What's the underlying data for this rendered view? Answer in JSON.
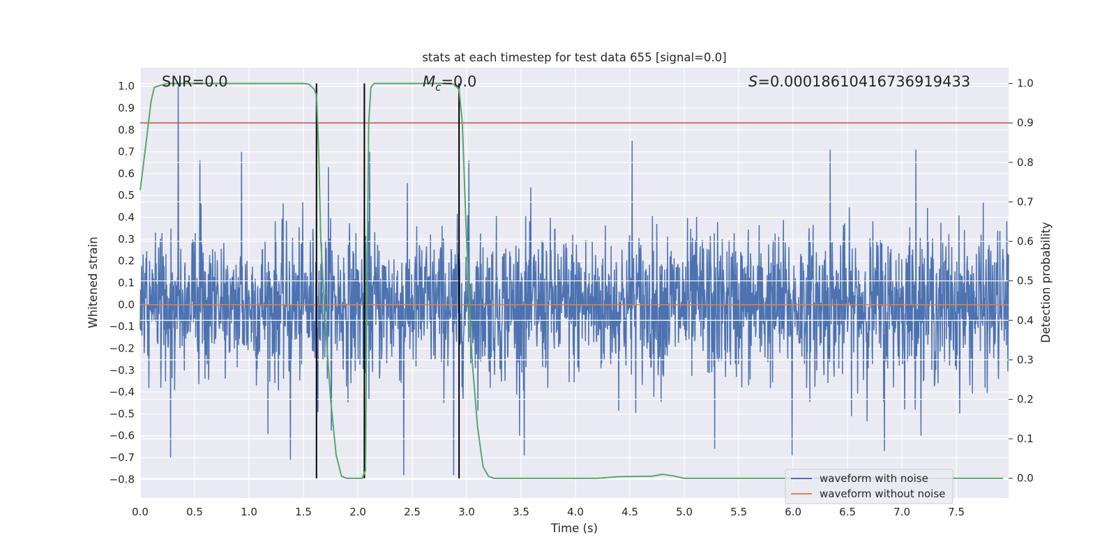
{
  "chart_data": {
    "type": "line",
    "title": "stats at each timestep for test data 655 [signal=0.0]",
    "xlabel": "Time (s)",
    "ylabel_left": "Whitened strain",
    "ylabel_right": "Detection probability",
    "xlim": [
      0.0,
      7.98
    ],
    "ylim_left": [
      -0.885,
      1.085
    ],
    "ylim_right": [
      -0.05,
      1.04
    ],
    "x_ticks": [
      "0.0",
      "0.5",
      "1.0",
      "1.5",
      "2.0",
      "2.5",
      "3.0",
      "3.5",
      "4.0",
      "4.5",
      "5.0",
      "5.5",
      "6.0",
      "6.5",
      "7.0",
      "7.5"
    ],
    "y_ticks_left": [
      "1.0",
      "0.9",
      "0.8",
      "0.7",
      "0.6",
      "0.5",
      "0.4",
      "0.3",
      "0.2",
      "0.1",
      "0.0",
      "−0.1",
      "−0.2",
      "−0.3",
      "−0.4",
      "−0.5",
      "−0.6",
      "−0.7",
      "−0.8"
    ],
    "y_ticks_right": [
      "1.0",
      "0.9",
      "0.8",
      "0.7",
      "0.6",
      "0.5",
      "0.4",
      "0.3",
      "0.2",
      "0.1",
      "0.0"
    ],
    "grid": true,
    "legend_position": "lower-right",
    "annotations": {
      "snr": "SNR=0.0",
      "mc_symbol": "M",
      "mc_subscript": "c",
      "mc_value": "=0.0",
      "s_symbol": "S",
      "s_value": "=0.00018610416736919433"
    },
    "series": [
      {
        "name": "waveform with noise",
        "color": "#4c72b0",
        "description_peaks": {
          "typical_range": [
            -0.45,
            0.45
          ],
          "max_spike": {
            "x": 0.35,
            "y": 1.0
          },
          "notable_highs": [
            [
              0.55,
              0.66
            ],
            [
              0.93,
              0.7
            ],
            [
              1.73,
              0.63
            ],
            [
              2.11,
              0.7
            ],
            [
              3.02,
              0.66
            ],
            [
              4.52,
              0.75
            ],
            [
              6.34,
              0.71
            ],
            [
              7.13,
              0.71
            ]
          ],
          "notable_lows": [
            [
              0.28,
              -0.7
            ],
            [
              1.38,
              -0.71
            ],
            [
              2.42,
              -0.78
            ],
            [
              2.88,
              -0.78
            ],
            [
              3.53,
              -0.69
            ],
            [
              5.28,
              -0.66
            ],
            [
              5.99,
              -0.69
            ],
            [
              6.84,
              -0.67
            ]
          ]
        }
      },
      {
        "name": "waveform without noise",
        "color": "#dd8452",
        "x": [
          0.0,
          7.98
        ],
        "y": [
          0.0,
          0.0
        ]
      },
      {
        "name": "detection probability",
        "axis": "right",
        "color": "#55a868",
        "x": [
          0.0,
          0.05,
          0.1,
          0.13,
          0.18,
          0.25,
          0.35,
          0.5,
          1.0,
          1.5,
          1.55,
          1.6,
          1.62,
          1.64,
          1.66,
          1.7,
          1.75,
          1.8,
          1.85,
          1.9,
          1.96,
          2.0,
          2.04,
          2.07,
          2.08,
          2.1,
          2.12,
          2.15,
          2.2,
          2.4,
          2.8,
          2.88,
          2.93,
          2.96,
          3.0,
          3.05,
          3.1,
          3.15,
          3.2,
          3.25,
          3.3,
          3.5,
          4.0,
          4.2,
          4.4,
          4.6,
          4.7,
          4.8,
          4.9,
          5.0,
          5.2,
          6.0,
          7.0,
          7.93
        ],
        "y": [
          0.73,
          0.84,
          0.955,
          0.99,
          0.995,
          1.0,
          1.0,
          1.0,
          1.0,
          1.0,
          0.998,
          0.985,
          0.97,
          0.83,
          0.6,
          0.4,
          0.2,
          0.06,
          0.005,
          0.0,
          0.0,
          0.0,
          0.0,
          0.02,
          0.35,
          0.9,
          0.99,
          1.0,
          1.0,
          1.0,
          1.0,
          0.998,
          0.985,
          0.9,
          0.6,
          0.3,
          0.13,
          0.03,
          0.005,
          0.0,
          0.0,
          0.0,
          0.0,
          0.0,
          0.004,
          0.005,
          0.005,
          0.01,
          0.006,
          0.0,
          0.0,
          0.0,
          0.0,
          0.0
        ]
      },
      {
        "name": "threshold",
        "axis": "right",
        "color": "#c44e52",
        "y": 0.9
      }
    ],
    "vertical_lines": [
      {
        "x": 1.62,
        "color": "#000000"
      },
      {
        "x": 2.06,
        "color": "#000000"
      },
      {
        "x": 2.93,
        "color": "#000000"
      }
    ]
  }
}
